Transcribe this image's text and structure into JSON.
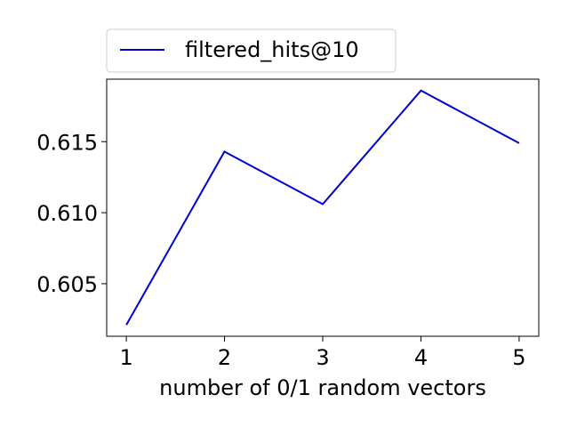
{
  "chart_data": {
    "type": "line",
    "x": [
      1,
      2,
      3,
      4,
      5
    ],
    "series": [
      {
        "name": "filtered_hits@10",
        "values": [
          0.6021,
          0.6143,
          0.6106,
          0.6186,
          0.6149
        ],
        "color": "#0000cc"
      }
    ],
    "xlabel": "number of 0/1 random vectors",
    "ylabel": "",
    "title": "",
    "xlim": [
      0.8,
      5.2
    ],
    "ylim": [
      0.6013,
      0.6194
    ],
    "x_ticks": [
      "1",
      "2",
      "3",
      "4",
      "5"
    ],
    "y_ticks": [
      "0.605",
      "0.610",
      "0.615"
    ],
    "legend": "above-left",
    "grid": false
  }
}
